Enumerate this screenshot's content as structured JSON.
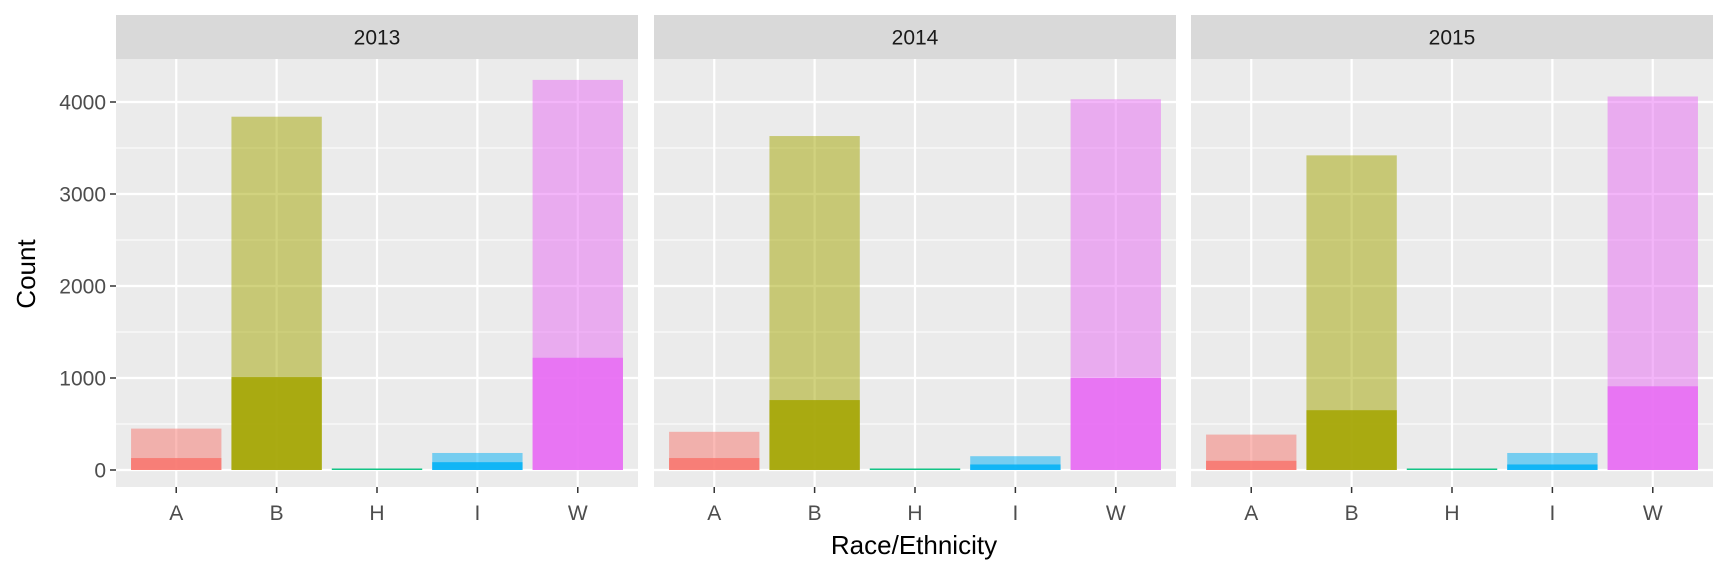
{
  "chart_data": {
    "type": "bar",
    "xlabel": "Race/Ethnicity",
    "ylabel": "Count",
    "categories": [
      "A",
      "B",
      "H",
      "I",
      "W"
    ],
    "ylim": [
      -200,
      4900
    ],
    "yticks": [
      0,
      1000,
      2000,
      3000,
      4000
    ],
    "grid": true,
    "legend": "none",
    "colors": {
      "A": "#F8766D",
      "B": "#A3A500",
      "H": "#00BF7D",
      "I": "#00B0F6",
      "W": "#E76BF3"
    },
    "panels": [
      {
        "label": "2013",
        "series": [
          {
            "values": [
              450,
              3840,
              10,
              185,
              4240
            ],
            "opacity": 0.5
          },
          {
            "values": [
              130,
              1010,
              4,
              85,
              1220
            ],
            "opacity": 0.85
          }
        ]
      },
      {
        "label": "2014",
        "series": [
          {
            "values": [
              415,
              3630,
              10,
              150,
              4030
            ],
            "opacity": 0.5
          },
          {
            "values": [
              130,
              760,
              4,
              60,
              1000
            ],
            "opacity": 0.85
          }
        ]
      },
      {
        "label": "2015",
        "series": [
          {
            "values": [
              385,
              3420,
              10,
              185,
              4060
            ],
            "opacity": 0.5
          },
          {
            "values": [
              100,
              650,
              4,
              60,
              910
            ],
            "opacity": 0.85
          }
        ]
      }
    ]
  }
}
